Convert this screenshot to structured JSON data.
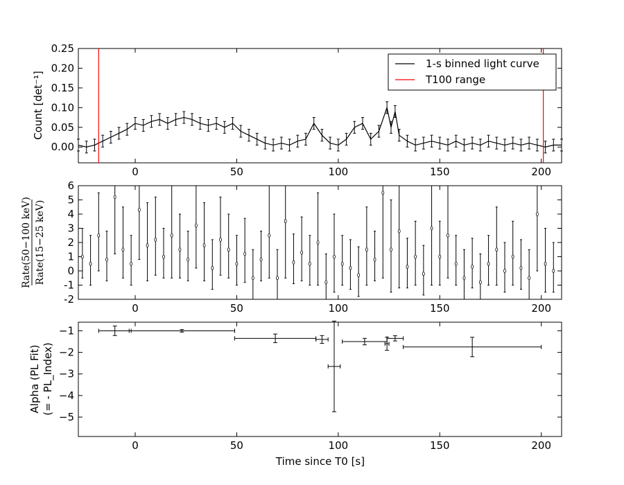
{
  "figure": {
    "xlabel": "Time since T0 [s]",
    "xlim": [
      -28,
      210
    ],
    "xticks": [
      0,
      50,
      100,
      150,
      200
    ]
  },
  "chart_data": [
    {
      "type": "line",
      "panel": "light_curve",
      "ylabel": "Count [det⁻¹]",
      "ylim": [
        -0.04,
        0.25
      ],
      "yticks": [
        0.0,
        0.05,
        0.1,
        0.15,
        0.2,
        0.25
      ],
      "ytick_labels": [
        "0.00",
        "0.05",
        "0.10",
        "0.15",
        "0.20",
        "0.25"
      ],
      "legend": {
        "position": "top-right",
        "entries": [
          {
            "label": "1-s binned light curve",
            "color": "#000000"
          },
          {
            "label": "T100 range",
            "color": "#ff0000"
          }
        ]
      },
      "t100_range": [
        -18,
        201
      ],
      "series": [
        {
          "name": "1-s binned light curve",
          "color": "#000000",
          "x": [
            -28,
            -24,
            -20,
            -16,
            -12,
            -8,
            -4,
            0,
            4,
            8,
            12,
            16,
            20,
            24,
            28,
            32,
            36,
            40,
            44,
            48,
            52,
            56,
            60,
            64,
            68,
            72,
            76,
            80,
            84,
            88,
            92,
            96,
            100,
            104,
            108,
            112,
            116,
            120,
            124,
            126,
            128,
            130,
            134,
            138,
            142,
            146,
            150,
            154,
            158,
            162,
            166,
            170,
            174,
            178,
            182,
            186,
            190,
            194,
            198,
            202,
            206,
            210
          ],
          "y": [
            0.005,
            0.0,
            0.005,
            0.015,
            0.025,
            0.035,
            0.045,
            0.06,
            0.055,
            0.065,
            0.07,
            0.06,
            0.07,
            0.075,
            0.07,
            0.06,
            0.055,
            0.06,
            0.05,
            0.06,
            0.04,
            0.03,
            0.02,
            0.01,
            0.005,
            0.01,
            0.005,
            0.015,
            0.02,
            0.06,
            0.03,
            0.01,
            0.005,
            0.02,
            0.05,
            0.06,
            0.02,
            0.04,
            0.1,
            0.05,
            0.09,
            0.03,
            0.015,
            0.005,
            0.01,
            0.015,
            0.01,
            0.005,
            0.015,
            0.005,
            0.01,
            0.005,
            0.015,
            0.01,
            0.005,
            0.01,
            0.005,
            0.01,
            0.005,
            0.0,
            0.005,
            0.005
          ],
          "yerr": 0.015
        }
      ]
    },
    {
      "type": "scatter",
      "panel": "hardness_ratio",
      "ylabel": "Rate(50−100 keV) / Rate(15−25 keV)",
      "ylabel_num": "Rate(50−100 keV)",
      "ylabel_den": "Rate(15−25 keV)",
      "ylim": [
        -2,
        6
      ],
      "yticks": [
        -2,
        -1,
        0,
        1,
        2,
        3,
        4,
        5,
        6
      ],
      "series": [
        {
          "name": "",
          "color": "#000000",
          "x": [
            -26,
            -22,
            -18,
            -14,
            -10,
            -6,
            -2,
            2,
            6,
            10,
            14,
            18,
            22,
            26,
            30,
            34,
            38,
            42,
            46,
            50,
            54,
            58,
            62,
            66,
            70,
            74,
            78,
            82,
            86,
            90,
            94,
            98,
            102,
            106,
            110,
            114,
            118,
            122,
            126,
            130,
            134,
            138,
            142,
            146,
            150,
            154,
            158,
            162,
            166,
            170,
            174,
            178,
            182,
            186,
            190,
            194,
            198,
            202,
            206
          ],
          "y": [
            1.0,
            0.5,
            2.5,
            0.8,
            5.2,
            1.5,
            0.5,
            4.3,
            1.8,
            2.2,
            1.0,
            2.5,
            1.5,
            0.8,
            3.2,
            1.8,
            0.2,
            2.2,
            1.5,
            0.5,
            1.2,
            -0.5,
            0.8,
            2.5,
            -0.5,
            3.5,
            0.6,
            1.3,
            0.5,
            2.0,
            -0.8,
            1.0,
            0.5,
            0.2,
            -0.3,
            1.5,
            0.8,
            5.5,
            1.5,
            2.8,
            0.3,
            1.0,
            -0.2,
            3.0,
            1.0,
            2.5,
            0.5,
            -0.5,
            0.3,
            -0.8,
            0.5,
            1.5,
            0.0,
            1.0,
            0.2,
            -0.5,
            4.0,
            0.5,
            0.0
          ],
          "yerr_lo": [
            1.5,
            1.5,
            2.5,
            1.5,
            4.0,
            2.0,
            1.5,
            3.5,
            2.5,
            2.5,
            1.5,
            3.0,
            2.0,
            1.5,
            3.0,
            2.5,
            1.5,
            2.5,
            2.0,
            1.5,
            2.0,
            1.5,
            1.5,
            3.0,
            1.5,
            4.0,
            1.5,
            2.0,
            1.5,
            3.0,
            1.2,
            2.5,
            1.5,
            1.5,
            1.5,
            2.5,
            1.5,
            6.0,
            3.0,
            4.0,
            1.5,
            2.0,
            1.5,
            4.0,
            2.0,
            3.0,
            1.5,
            1.5,
            1.5,
            1.2,
            1.5,
            2.5,
            1.5,
            2.0,
            1.5,
            1.5,
            4.0,
            2.0,
            1.5
          ],
          "yerr_hi": [
            2.0,
            2.0,
            3.0,
            2.0,
            5.0,
            3.0,
            2.0,
            4.0,
            3.0,
            3.0,
            2.0,
            3.5,
            2.5,
            2.0,
            3.5,
            3.0,
            2.0,
            3.0,
            2.5,
            2.0,
            2.5,
            2.0,
            2.0,
            3.5,
            2.0,
            5.0,
            2.0,
            2.5,
            2.0,
            3.5,
            2.0,
            3.0,
            2.0,
            2.0,
            2.0,
            3.0,
            2.0,
            6.0,
            3.5,
            5.0,
            2.0,
            2.5,
            2.0,
            5.0,
            2.5,
            3.5,
            2.0,
            2.0,
            2.0,
            2.0,
            2.0,
            3.0,
            2.0,
            2.5,
            2.0,
            2.0,
            5.0,
            2.5,
            2.0
          ]
        }
      ]
    },
    {
      "type": "scatter",
      "panel": "spectral_index",
      "ylabel_line1": "Alpha (PL Fit)",
      "ylabel_line2": "(= - PL_Index)",
      "ylim": [
        -5.9,
        -0.6
      ],
      "yticks": [
        -5,
        -4,
        -3,
        -2,
        -1
      ],
      "ytick_labels": [
        "−5",
        "−4",
        "−3",
        "−2",
        "−1"
      ],
      "series": [
        {
          "name": "",
          "color": "#000000",
          "x": [
            -10,
            23,
            69,
            92,
            98,
            113,
            124,
            128,
            166
          ],
          "xerr": [
            8,
            26,
            20,
            3,
            3,
            11,
            1,
            4,
            34
          ],
          "y": [
            -1.0,
            -1.0,
            -1.35,
            -1.4,
            -2.65,
            -1.5,
            -1.6,
            -1.35,
            -1.75
          ],
          "yerr": [
            0.22,
            0.06,
            0.2,
            0.18,
            2.1,
            0.15,
            0.3,
            0.12,
            0.45
          ]
        }
      ]
    }
  ]
}
